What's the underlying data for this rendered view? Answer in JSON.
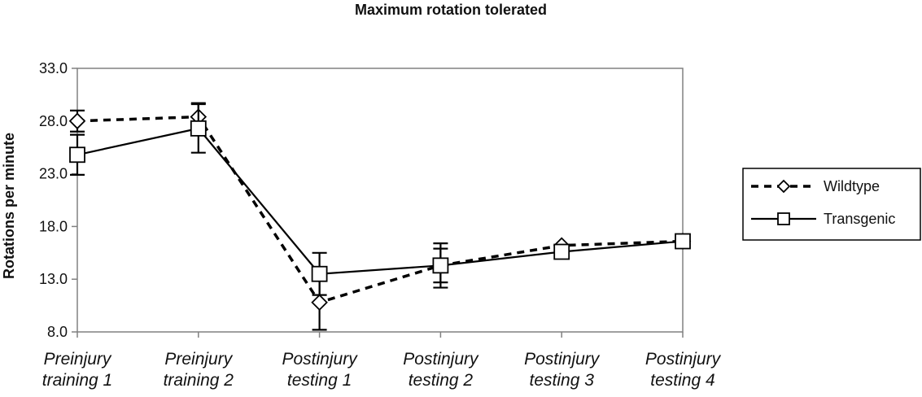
{
  "chart_data": {
    "type": "line",
    "title": "Maximum rotation tolerated",
    "xlabel": "",
    "ylabel": "Rotations per minute",
    "ylim": [
      8.0,
      33.0
    ],
    "yticks": [
      "8.0",
      "13.0",
      "18.0",
      "23.0",
      "28.0",
      "33.0"
    ],
    "ytick_values": [
      8,
      13,
      18,
      23,
      28,
      33
    ],
    "categories": [
      [
        "Preinjury",
        "training 1"
      ],
      [
        "Preinjury",
        "training 2"
      ],
      [
        "Postinjury",
        "testing 1"
      ],
      [
        "Postinjury",
        "testing 2"
      ],
      [
        "Postinjury",
        "testing 3"
      ],
      [
        "Postinjury",
        "testing 4"
      ]
    ],
    "grid": false,
    "legend_position": "right",
    "series": [
      {
        "name": "Wildtype",
        "style": "dashed",
        "marker": "diamond",
        "values": [
          28.0,
          28.4,
          10.8,
          14.3,
          16.2,
          16.6
        ],
        "error": [
          1.0,
          1.3,
          2.6,
          2.1,
          0.0,
          0.0
        ]
      },
      {
        "name": "Transgenic",
        "style": "solid",
        "marker": "square",
        "values": [
          24.8,
          27.3,
          13.5,
          14.3,
          15.6,
          16.6
        ],
        "error": [
          1.9,
          2.3,
          2.0,
          1.6,
          0.0,
          0.0
        ]
      }
    ]
  }
}
